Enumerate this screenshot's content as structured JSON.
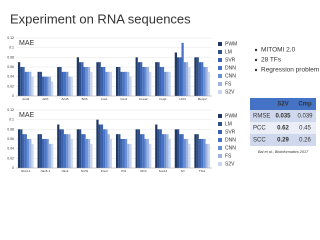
{
  "title": "Experiment on RNA sequences",
  "bullets": [
    "MITOMI 2.0",
    "28 TFs",
    "Regression problem"
  ],
  "table": {
    "header": [
      "S2V",
      "Cmp"
    ],
    "rows": [
      [
        "RMSE",
        0.035,
        0.039
      ],
      [
        "PCC",
        0.62,
        0.45
      ],
      [
        "SCC",
        0.29,
        0.26
      ]
    ]
  },
  "citation": "Bai et al., Bioinformatics 2017",
  "chart_data": [
    {
      "type": "bar",
      "title": "MAE",
      "categories": [
        "Arid3",
        "ARX",
        "Arid5",
        "Bcl6",
        "Cux1",
        "Cux2",
        "Foxa2",
        "Foxj1",
        "Hnf4",
        "Mecp2"
      ],
      "ylim": [
        0,
        0.12
      ],
      "yticks": [
        0,
        0.02,
        0.04,
        0.06,
        0.08,
        0.1,
        0.12
      ],
      "grid": true,
      "series": [
        {
          "name": "PWM",
          "color": "#1f3864",
          "values": [
            0.07,
            0.05,
            0.06,
            0.08,
            0.07,
            0.06,
            0.08,
            0.07,
            0.09,
            0.08
          ]
        },
        {
          "name": "LM",
          "color": "#2e4f8a",
          "values": [
            0.06,
            0.05,
            0.06,
            0.07,
            0.07,
            0.06,
            0.07,
            0.07,
            0.08,
            0.08
          ]
        },
        {
          "name": "SVR",
          "color": "#3a62b0",
          "values": [
            0.06,
            0.04,
            0.05,
            0.07,
            0.06,
            0.05,
            0.07,
            0.06,
            0.08,
            0.07
          ]
        },
        {
          "name": "DNN",
          "color": "#4472c4",
          "values": [
            0.05,
            0.04,
            0.05,
            0.06,
            0.06,
            0.05,
            0.06,
            0.06,
            0.11,
            0.07
          ]
        },
        {
          "name": "CNN",
          "color": "#6a8fd2",
          "values": [
            0.05,
            0.04,
            0.05,
            0.06,
            0.05,
            0.05,
            0.06,
            0.05,
            0.07,
            0.06
          ]
        },
        {
          "name": "FS",
          "color": "#9db4e2",
          "values": [
            0.05,
            0.04,
            0.04,
            0.06,
            0.05,
            0.05,
            0.06,
            0.05,
            0.07,
            0.06
          ]
        },
        {
          "name": "S2V",
          "color": "#c9d6ef",
          "values": [
            0.04,
            0.03,
            0.04,
            0.05,
            0.05,
            0.04,
            0.05,
            0.05,
            0.06,
            0.05
          ]
        }
      ]
    },
    {
      "type": "bar",
      "title": "MAE",
      "categories": [
        "Nkx3-1",
        "Nkx6-1",
        "Nkx2",
        "Nr2f1",
        "Pou3",
        "Pit1",
        "Rfx3",
        "Sox14",
        "Srf",
        "Tbx1"
      ],
      "ylim": [
        0,
        0.12
      ],
      "yticks": [
        0,
        0.02,
        0.04,
        0.06,
        0.08,
        0.1,
        0.12
      ],
      "grid": true,
      "series": [
        {
          "name": "PWM",
          "color": "#1f3864",
          "values": [
            0.08,
            0.07,
            0.09,
            0.08,
            0.1,
            0.07,
            0.08,
            0.09,
            0.08,
            0.07
          ]
        },
        {
          "name": "LM",
          "color": "#2e4f8a",
          "values": [
            0.08,
            0.07,
            0.08,
            0.08,
            0.09,
            0.07,
            0.08,
            0.08,
            0.08,
            0.07
          ]
        },
        {
          "name": "SVR",
          "color": "#3a62b0",
          "values": [
            0.07,
            0.06,
            0.08,
            0.07,
            0.09,
            0.06,
            0.07,
            0.08,
            0.07,
            0.06
          ]
        },
        {
          "name": "DNN",
          "color": "#4472c4",
          "values": [
            0.07,
            0.06,
            0.07,
            0.07,
            0.08,
            0.06,
            0.07,
            0.07,
            0.07,
            0.06
          ]
        },
        {
          "name": "CNN",
          "color": "#6a8fd2",
          "values": [
            0.06,
            0.06,
            0.07,
            0.06,
            0.08,
            0.06,
            0.06,
            0.07,
            0.06,
            0.06
          ]
        },
        {
          "name": "FS",
          "color": "#9db4e2",
          "values": [
            0.06,
            0.05,
            0.07,
            0.06,
            0.07,
            0.05,
            0.06,
            0.07,
            0.06,
            0.05
          ]
        },
        {
          "name": "S2V",
          "color": "#c9d6ef",
          "values": [
            0.05,
            0.05,
            0.06,
            0.05,
            0.06,
            0.05,
            0.05,
            0.06,
            0.05,
            0.05
          ]
        }
      ]
    }
  ]
}
